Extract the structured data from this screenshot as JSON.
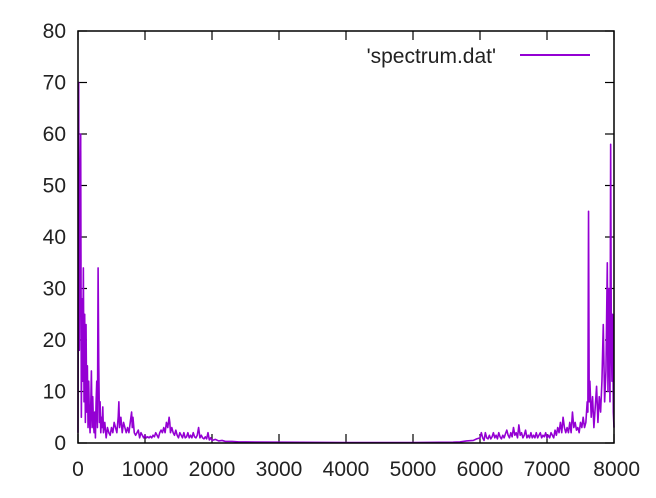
{
  "chart_data": {
    "type": "line",
    "title": "",
    "xlabel": "",
    "ylabel": "",
    "xlim": [
      0,
      8000
    ],
    "ylim": [
      0,
      80
    ],
    "xticks": [
      0,
      1000,
      2000,
      3000,
      4000,
      5000,
      6000,
      7000,
      8000
    ],
    "yticks": [
      0,
      10,
      20,
      30,
      40,
      50,
      60,
      70,
      80
    ],
    "grid": false,
    "legend_position": "top-right",
    "colors": {
      "series": "#9400d3",
      "axis": "#000000",
      "text": "#222222"
    },
    "series": [
      {
        "name": "'spectrum.dat'",
        "points": [
          [
            0,
            2
          ],
          [
            10,
            70
          ],
          [
            20,
            18
          ],
          [
            30,
            45
          ],
          [
            40,
            60
          ],
          [
            50,
            5
          ],
          [
            60,
            28
          ],
          [
            70,
            12
          ],
          [
            80,
            34
          ],
          [
            90,
            8
          ],
          [
            100,
            25
          ],
          [
            110,
            4
          ],
          [
            120,
            23
          ],
          [
            130,
            6
          ],
          [
            140,
            15
          ],
          [
            150,
            3
          ],
          [
            160,
            12
          ],
          [
            170,
            5
          ],
          [
            180,
            2
          ],
          [
            190,
            7
          ],
          [
            200,
            14
          ],
          [
            210,
            3
          ],
          [
            220,
            9
          ],
          [
            230,
            4
          ],
          [
            240,
            2
          ],
          [
            250,
            6
          ],
          [
            260,
            1
          ],
          [
            270,
            8
          ],
          [
            280,
            12
          ],
          [
            290,
            3
          ],
          [
            300,
            34
          ],
          [
            310,
            15
          ],
          [
            320,
            4
          ],
          [
            330,
            8
          ],
          [
            340,
            2
          ],
          [
            350,
            5
          ],
          [
            360,
            3
          ],
          [
            370,
            7
          ],
          [
            380,
            2
          ],
          [
            400,
            4
          ],
          [
            420,
            1
          ],
          [
            440,
            3
          ],
          [
            460,
            2
          ],
          [
            480,
            1.5
          ],
          [
            500,
            3
          ],
          [
            520,
            2
          ],
          [
            540,
            4
          ],
          [
            560,
            3
          ],
          [
            580,
            2
          ],
          [
            600,
            5
          ],
          [
            610,
            8
          ],
          [
            620,
            3
          ],
          [
            640,
            5
          ],
          [
            660,
            2
          ],
          [
            680,
            4
          ],
          [
            700,
            3
          ],
          [
            720,
            2
          ],
          [
            740,
            3
          ],
          [
            760,
            2
          ],
          [
            780,
            4
          ],
          [
            800,
            6
          ],
          [
            810,
            3
          ],
          [
            820,
            5
          ],
          [
            840,
            2
          ],
          [
            860,
            1.5
          ],
          [
            880,
            2
          ],
          [
            900,
            2.5
          ],
          [
            920,
            1
          ],
          [
            940,
            2
          ],
          [
            960,
            1.5
          ],
          [
            980,
            1
          ],
          [
            1000,
            1.5
          ],
          [
            1020,
            1
          ],
          [
            1040,
            1.2
          ],
          [
            1060,
            1
          ],
          [
            1080,
            1.3
          ],
          [
            1100,
            1
          ],
          [
            1120,
            1.5
          ],
          [
            1140,
            1.2
          ],
          [
            1160,
            2
          ],
          [
            1180,
            1.5
          ],
          [
            1200,
            1
          ],
          [
            1220,
            2
          ],
          [
            1240,
            2.5
          ],
          [
            1260,
            2
          ],
          [
            1280,
            3
          ],
          [
            1300,
            2
          ],
          [
            1320,
            4
          ],
          [
            1340,
            3
          ],
          [
            1360,
            5
          ],
          [
            1370,
            4
          ],
          [
            1380,
            2
          ],
          [
            1400,
            3
          ],
          [
            1420,
            2
          ],
          [
            1440,
            1.5
          ],
          [
            1460,
            2.5
          ],
          [
            1480,
            1.5
          ],
          [
            1500,
            1
          ],
          [
            1520,
            2
          ],
          [
            1540,
            1.5
          ],
          [
            1560,
            1
          ],
          [
            1580,
            2
          ],
          [
            1600,
            1
          ],
          [
            1620,
            1.2
          ],
          [
            1640,
            2
          ],
          [
            1660,
            1
          ],
          [
            1680,
            1.5
          ],
          [
            1700,
            1
          ],
          [
            1720,
            2
          ],
          [
            1740,
            1.2
          ],
          [
            1760,
            1
          ],
          [
            1780,
            1.5
          ],
          [
            1800,
            3
          ],
          [
            1810,
            2
          ],
          [
            1820,
            1
          ],
          [
            1840,
            1.5
          ],
          [
            1860,
            1
          ],
          [
            1880,
            0.8
          ],
          [
            1900,
            1.2
          ],
          [
            1920,
            0.8
          ],
          [
            1940,
            2
          ],
          [
            1960,
            0.6
          ],
          [
            1980,
            1
          ],
          [
            2000,
            0.5
          ],
          [
            2050,
            0.7
          ],
          [
            2100,
            0.4
          ],
          [
            2150,
            0.5
          ],
          [
            2200,
            0.3
          ],
          [
            2300,
            0.3
          ],
          [
            2400,
            0.2
          ],
          [
            2500,
            0.2
          ],
          [
            3000,
            0.15
          ],
          [
            4000,
            0.1
          ],
          [
            5000,
            0.1
          ],
          [
            5600,
            0.15
          ],
          [
            5700,
            0.2
          ],
          [
            5800,
            0.4
          ],
          [
            5900,
            0.5
          ],
          [
            5950,
            0.8
          ],
          [
            6000,
            1
          ],
          [
            6020,
            2
          ],
          [
            6040,
            1
          ],
          [
            6060,
            0.5
          ],
          [
            6080,
            2
          ],
          [
            6100,
            1
          ],
          [
            6120,
            0.8
          ],
          [
            6140,
            1.5
          ],
          [
            6160,
            0.8
          ],
          [
            6180,
            1.2
          ],
          [
            6200,
            2
          ],
          [
            6220,
            1
          ],
          [
            6240,
            1.5
          ],
          [
            6260,
            0.8
          ],
          [
            6280,
            2
          ],
          [
            6300,
            1.2
          ],
          [
            6320,
            0.8
          ],
          [
            6340,
            1.5
          ],
          [
            6360,
            1
          ],
          [
            6380,
            1.8
          ],
          [
            6400,
            2.5
          ],
          [
            6420,
            1.5
          ],
          [
            6440,
            1
          ],
          [
            6460,
            2
          ],
          [
            6480,
            1.2
          ],
          [
            6500,
            3
          ],
          [
            6520,
            1.5
          ],
          [
            6540,
            2
          ],
          [
            6560,
            1
          ],
          [
            6580,
            3.5
          ],
          [
            6600,
            1.5
          ],
          [
            6620,
            2
          ],
          [
            6640,
            1
          ],
          [
            6660,
            1.5
          ],
          [
            6680,
            2.5
          ],
          [
            6700,
            1
          ],
          [
            6720,
            1.5
          ],
          [
            6740,
            1
          ],
          [
            6760,
            2
          ],
          [
            6780,
            1
          ],
          [
            6800,
            1.5
          ],
          [
            6820,
            1
          ],
          [
            6840,
            2
          ],
          [
            6860,
            1
          ],
          [
            6880,
            1.5
          ],
          [
            6900,
            2
          ],
          [
            6920,
            1
          ],
          [
            6940,
            1.5
          ],
          [
            6960,
            1.2
          ],
          [
            6980,
            2
          ],
          [
            7000,
            1
          ],
          [
            7020,
            1.5
          ],
          [
            7040,
            1
          ],
          [
            7060,
            2
          ],
          [
            7080,
            1.5
          ],
          [
            7100,
            1
          ],
          [
            7120,
            2.5
          ],
          [
            7140,
            1.5
          ],
          [
            7160,
            3
          ],
          [
            7180,
            2
          ],
          [
            7200,
            4
          ],
          [
            7220,
            2
          ],
          [
            7240,
            5
          ],
          [
            7260,
            3
          ],
          [
            7280,
            2
          ],
          [
            7300,
            3
          ],
          [
            7320,
            2
          ],
          [
            7340,
            4
          ],
          [
            7360,
            2
          ],
          [
            7380,
            6
          ],
          [
            7400,
            3
          ],
          [
            7420,
            4
          ],
          [
            7440,
            2.5
          ],
          [
            7460,
            3
          ],
          [
            7480,
            2
          ],
          [
            7500,
            4
          ],
          [
            7520,
            3
          ],
          [
            7540,
            5
          ],
          [
            7560,
            3
          ],
          [
            7580,
            4
          ],
          [
            7600,
            8
          ],
          [
            7610,
            6
          ],
          [
            7620,
            45
          ],
          [
            7630,
            8
          ],
          [
            7640,
            12
          ],
          [
            7660,
            5
          ],
          [
            7680,
            9
          ],
          [
            7700,
            3
          ],
          [
            7720,
            7
          ],
          [
            7740,
            11
          ],
          [
            7760,
            4
          ],
          [
            7780,
            9
          ],
          [
            7800,
            6
          ],
          [
            7820,
            12
          ],
          [
            7840,
            23
          ],
          [
            7860,
            8
          ],
          [
            7880,
            14
          ],
          [
            7900,
            35
          ],
          [
            7910,
            10
          ],
          [
            7920,
            30
          ],
          [
            7940,
            8
          ],
          [
            7950,
            58
          ],
          [
            7960,
            20
          ],
          [
            7970,
            12
          ],
          [
            7980,
            25
          ],
          [
            7990,
            6
          ],
          [
            8000,
            3
          ]
        ]
      }
    ]
  }
}
